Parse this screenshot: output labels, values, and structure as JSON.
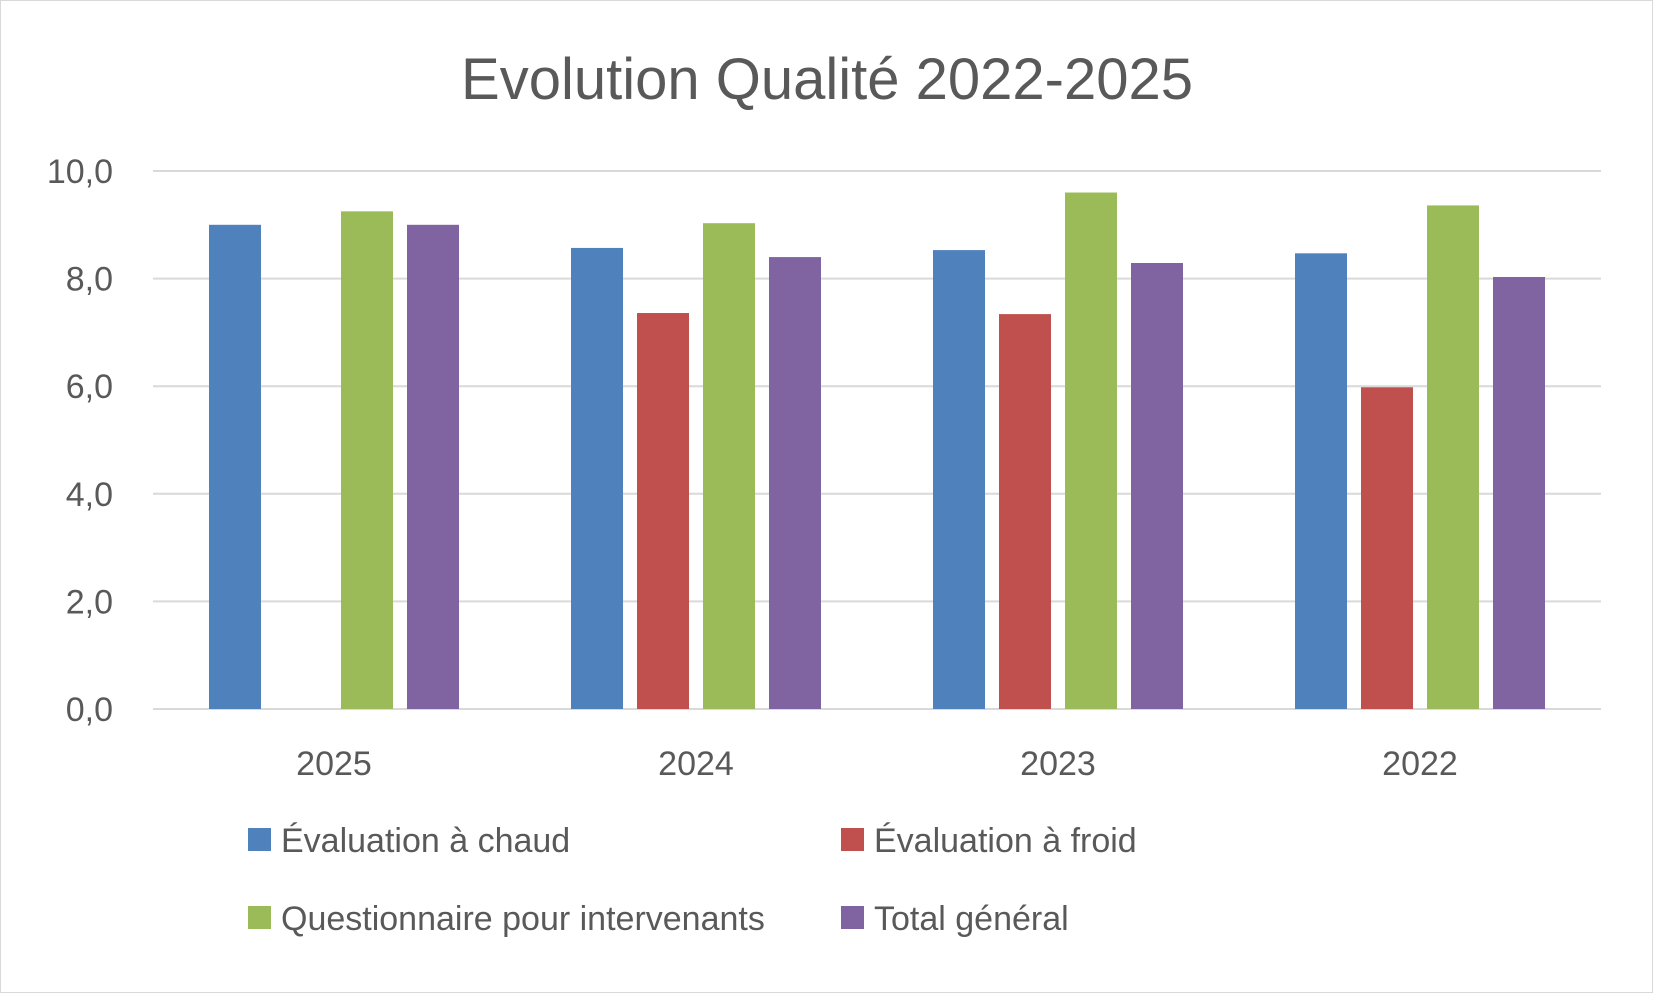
{
  "chart_data": {
    "type": "bar",
    "title": "Evolution Qualité 2022-2025",
    "xlabel": "",
    "ylabel": "",
    "categories": [
      "2025",
      "2024",
      "2023",
      "2022"
    ],
    "ylim": [
      0,
      10
    ],
    "yticks": [
      0,
      2,
      4,
      6,
      8,
      10
    ],
    "ytick_labels": [
      "0,0",
      "2,0",
      "4,0",
      "6,0",
      "8,0",
      "10,0"
    ],
    "grid": true,
    "legend_position": "bottom",
    "series": [
      {
        "name": "Évaluation à chaud",
        "color": "#4f81bd",
        "values": [
          9.0,
          8.57,
          8.53,
          8.47
        ]
      },
      {
        "name": "Évaluation à froid",
        "color": "#c0504d",
        "values": [
          null,
          7.36,
          7.34,
          5.98
        ]
      },
      {
        "name": "Questionnaire pour intervenants",
        "color": "#9bbb59",
        "values": [
          9.25,
          9.03,
          9.6,
          9.36
        ]
      },
      {
        "name": "Total général",
        "color": "#8064a2",
        "values": [
          9.0,
          8.4,
          8.29,
          8.03
        ]
      }
    ]
  }
}
